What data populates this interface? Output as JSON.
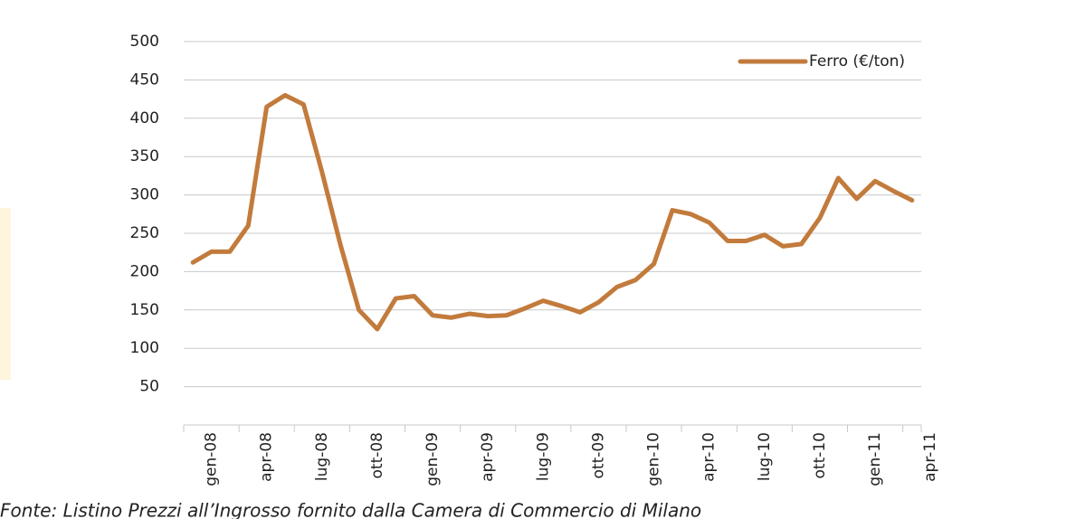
{
  "chart_data": {
    "type": "line",
    "categories": [
      "gen-08",
      null,
      null,
      "apr-08",
      null,
      null,
      "lug-08",
      null,
      null,
      "ott-08",
      null,
      null,
      "gen-09",
      null,
      null,
      "apr-09",
      null,
      null,
      "lug-09",
      null,
      null,
      "ott-09",
      null,
      null,
      "gen-10",
      null,
      null,
      "apr-10",
      null,
      null,
      "lug-10",
      null,
      null,
      "ott-10",
      null,
      null,
      "gen-11",
      null,
      null,
      "apr-11"
    ],
    "series": [
      {
        "name": "Ferro (€/ton)",
        "color": "#c27b3c",
        "values": [
          212,
          226,
          226,
          260,
          415,
          430,
          418,
          330,
          235,
          150,
          125,
          165,
          168,
          143,
          140,
          145,
          142,
          143,
          152,
          162,
          155,
          147,
          160,
          180,
          189,
          210,
          280,
          275,
          264,
          240,
          240,
          248,
          233,
          236,
          270,
          322,
          295,
          318,
          305,
          293
        ]
      }
    ],
    "ylim": [
      0,
      500
    ],
    "yticks": [
      50,
      100,
      150,
      200,
      250,
      300,
      350,
      400,
      450,
      500
    ],
    "grid": true,
    "legend": "top-right",
    "note": "Fonte: Listino Prezzi all’Ingrosso fornito dalla Camera di Commercio di Milano"
  }
}
